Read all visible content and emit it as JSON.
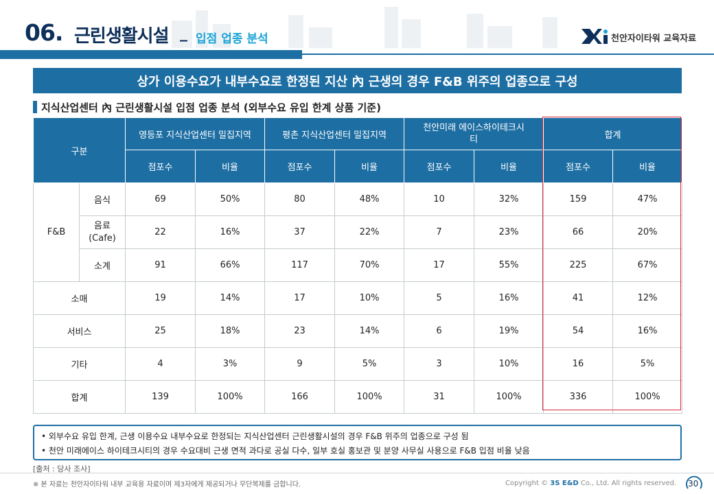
{
  "header": {
    "number": "06.",
    "title": "근린생활시설",
    "underscore": "_",
    "subtitle": "입점 업종 분석",
    "logo_text": "천안자이타워 교육자료"
  },
  "banner": "상가 이용수요가 내부수요로 한정된 지산 內 근생의 경우 F&B 위주의 업종으로 구성",
  "section_title": "지식산업센터 內 근린생활시설 입점 업종 분석 (외부수요 유입 한계 상품 기준)",
  "table": {
    "col_group_label": "구분",
    "groups": [
      "영등포 지식산업센터 밀집지역",
      "평촌 지식산업센터 밀집지역",
      "천안미래 에이스하이테크시티",
      "합계"
    ],
    "sub_headers": [
      "점포수",
      "비율",
      "점포수",
      "비율",
      "점포수",
      "비율",
      "점포수",
      "비율"
    ],
    "fb_label": "F&B",
    "rows": [
      {
        "label": "음식",
        "cells": [
          "69",
          "50%",
          "80",
          "48%",
          "10",
          "32%",
          "159",
          "47%"
        ]
      },
      {
        "label": "음료 (Cafe)",
        "cells": [
          "22",
          "16%",
          "37",
          "22%",
          "7",
          "23%",
          "66",
          "20%"
        ]
      },
      {
        "label": "소계",
        "cells": [
          "91",
          "66%",
          "117",
          "70%",
          "17",
          "55%",
          "225",
          "67%"
        ]
      },
      {
        "label": "소매",
        "cells": [
          "19",
          "14%",
          "17",
          "10%",
          "5",
          "16%",
          "41",
          "12%"
        ]
      },
      {
        "label": "서비스",
        "cells": [
          "25",
          "18%",
          "23",
          "14%",
          "6",
          "19%",
          "54",
          "16%"
        ]
      },
      {
        "label": "기타",
        "cells": [
          "4",
          "3%",
          "9",
          "5%",
          "3",
          "10%",
          "16",
          "5%"
        ]
      },
      {
        "label": "합계",
        "cells": [
          "139",
          "100%",
          "166",
          "100%",
          "31",
          "100%",
          "336",
          "100%"
        ]
      }
    ]
  },
  "notes": [
    "• 외부수요 유입 한계, 근생 이용수요 내부수요로 한정되는 지식산업센터 근린생활시설의 경우 F&B 위주의 업종으로 구성 됨",
    "• 천안 미래에이스 하이테크시티의 경우 수요대비 근생 면적 과다로 공실 다수, 일부 호실 홍보관 및 분양 사무실 사용으로 F&B 입점 비율 낮음"
  ],
  "source": "[출처 : 당사 조사]",
  "footer": {
    "disclaimer": "※ 본 자료는 천안자이타워 내부 교육용 자료이며 제3자에게 제공되거나 무단복제를 금합니다.",
    "copyright_prefix": "Copyright ©",
    "copyright_brand": "3S E&D",
    "copyright_suffix": "Co., Ltd. All rights reserved.",
    "page_number": "30"
  },
  "colors": {
    "primary": "#1d6ea3",
    "navy": "#0e2f5a",
    "accent": "#1aa3d6",
    "highlight_border": "#d9253a"
  }
}
